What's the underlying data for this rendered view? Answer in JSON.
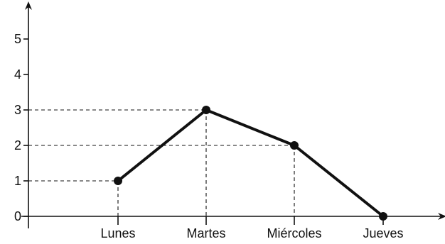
{
  "chart_data": {
    "type": "line",
    "title": "",
    "xlabel": "",
    "ylabel": "",
    "categories": [
      "Lunes",
      "Martes",
      "Miércoles",
      "Jueves"
    ],
    "values": [
      1,
      3,
      2,
      0
    ],
    "yticks": [
      0,
      1,
      2,
      3,
      4,
      5
    ],
    "ylim": [
      0,
      5
    ],
    "grid": false,
    "legend": "none",
    "guide_lines": true
  }
}
